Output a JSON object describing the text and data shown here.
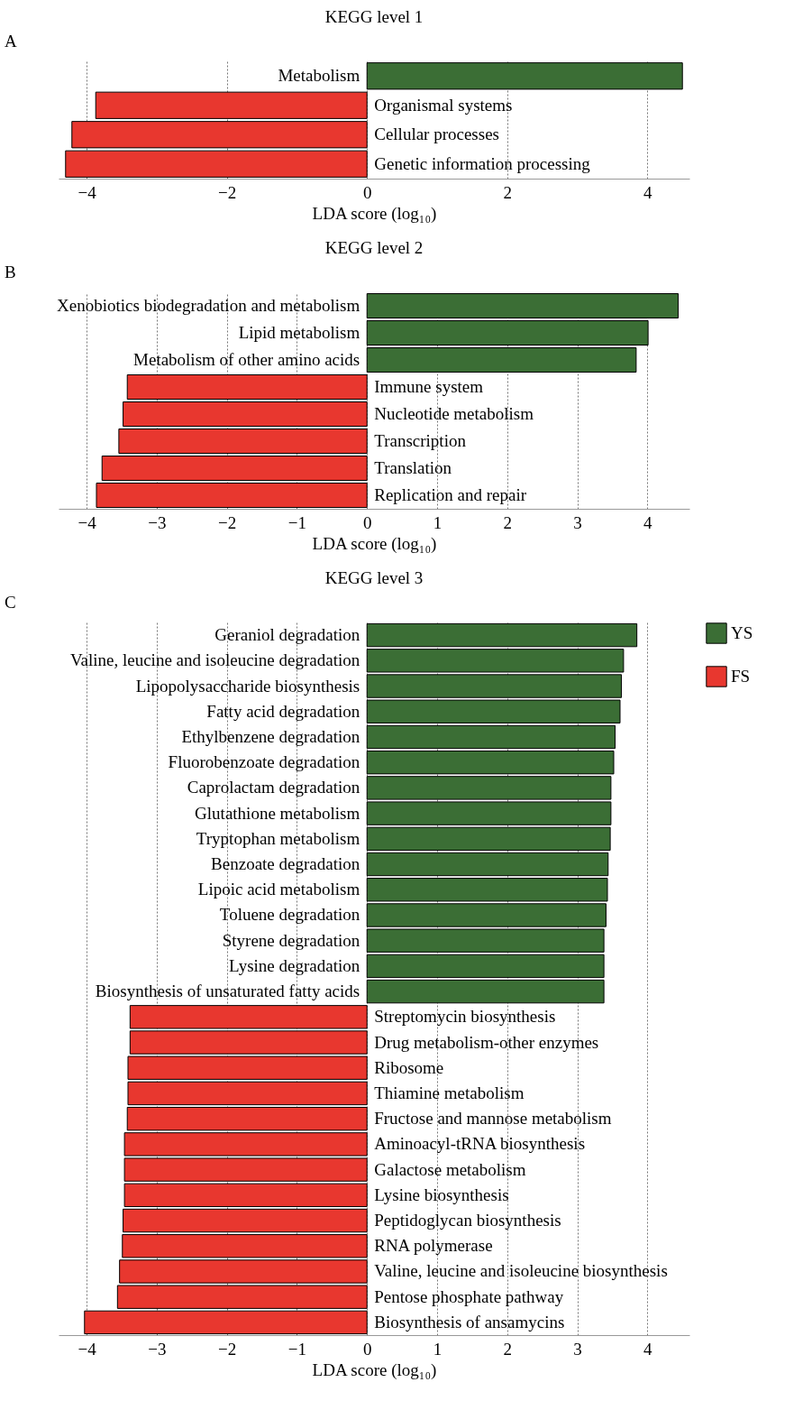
{
  "chart_data": [
    {
      "type": "bar",
      "orientation": "horizontal",
      "title": "KEGG level 1",
      "annotations": [
        "A"
      ],
      "xlabel": "LDA score (log₁₀)",
      "xlim": [
        -4.4,
        4.6
      ],
      "xticks": [
        {
          "value": -4,
          "label": "−4"
        },
        {
          "value": -2,
          "label": "−2"
        },
        {
          "value": 0,
          "label": "0"
        },
        {
          "value": 2,
          "label": "2"
        },
        {
          "value": 4,
          "label": "4"
        }
      ],
      "grid": "x",
      "legend": false,
      "categories": [
        "Metabolism",
        "Organismal systems",
        "Cellular processes",
        "Genetic information processing"
      ],
      "series": [
        {
          "color": "#3b6e35",
          "values": [
            4.5,
            null,
            null,
            null
          ]
        },
        {
          "color": "#e8372f",
          "values": [
            null,
            -3.87,
            -4.21,
            -4.3
          ]
        }
      ]
    },
    {
      "type": "bar",
      "orientation": "horizontal",
      "title": "KEGG level 2",
      "annotations": [
        "B"
      ],
      "xlabel": "LDA score (log₁₀)",
      "xlim": [
        -4.4,
        4.6
      ],
      "xticks": [
        {
          "value": -4,
          "label": "−4"
        },
        {
          "value": -3,
          "label": "−3"
        },
        {
          "value": -2,
          "label": "−2"
        },
        {
          "value": -1,
          "label": "−1"
        },
        {
          "value": 0,
          "label": "0"
        },
        {
          "value": 1,
          "label": "1"
        },
        {
          "value": 2,
          "label": "2"
        },
        {
          "value": 3,
          "label": "3"
        },
        {
          "value": 4,
          "label": "4"
        }
      ],
      "grid": "x",
      "legend": false,
      "categories": [
        "Xenobiotics biodegradation and metabolism",
        "Lipid metabolism",
        "Metabolism of other amino acids",
        "Immune system",
        "Nucleotide metabolism",
        "Transcription",
        "Translation",
        "Replication and repair"
      ],
      "series": [
        {
          "color": "#3b6e35",
          "values": [
            4.44,
            4.01,
            3.84,
            null,
            null,
            null,
            null,
            null
          ]
        },
        {
          "color": "#e8372f",
          "values": [
            null,
            null,
            null,
            -3.42,
            -3.48,
            -3.54,
            -3.78,
            -3.86
          ]
        }
      ]
    },
    {
      "type": "bar",
      "orientation": "horizontal",
      "title": "KEGG level 3",
      "annotations": [
        "C"
      ],
      "xlabel": "LDA score (log₁₀)",
      "xlim": [
        -4.4,
        4.6
      ],
      "xticks": [
        {
          "value": -4,
          "label": "−4"
        },
        {
          "value": -3,
          "label": "−3"
        },
        {
          "value": -2,
          "label": "−2"
        },
        {
          "value": -1,
          "label": "−1"
        },
        {
          "value": 0,
          "label": "0"
        },
        {
          "value": 1,
          "label": "1"
        },
        {
          "value": 2,
          "label": "2"
        },
        {
          "value": 3,
          "label": "3"
        },
        {
          "value": 4,
          "label": "4"
        }
      ],
      "grid": "x",
      "legend": "right",
      "categories": [
        "Geraniol degradation",
        "Valine, leucine and isoleucine degradation",
        "Lipopolysaccharide biosynthesis",
        "Fatty acid degradation",
        "Ethylbenzene degradation",
        "Fluorobenzoate degradation",
        "Caprolactam degradation",
        "Glutathione metabolism",
        "Tryptophan metabolism",
        "Benzoate degradation",
        "Lipoic acid metabolism",
        "Toluene degradation",
        "Styrene degradation",
        "Lysine degradation",
        "Biosynthesis of unsaturated fatty acids",
        "Streptomycin biosynthesis",
        "Drug metabolism-other enzymes",
        "Ribosome",
        "Thiamine metabolism",
        "Fructose and mannose metabolism",
        "Aminoacyl-tRNA biosynthesis",
        "Galactose metabolism",
        "Lysine biosynthesis",
        "Peptidoglycan biosynthesis",
        "RNA polymerase",
        "Valine, leucine and isoleucine biosynthesis",
        "Pentose phosphate pathway",
        "Biosynthesis of ansamycins"
      ],
      "series": [
        {
          "name": "YS",
          "color": "#3b6e35",
          "values": [
            3.85,
            3.66,
            3.63,
            3.61,
            3.54,
            3.52,
            3.48,
            3.48,
            3.47,
            3.44,
            3.43,
            3.41,
            3.38,
            3.38,
            3.38,
            null,
            null,
            null,
            null,
            null,
            null,
            null,
            null,
            null,
            null,
            null,
            null,
            null
          ]
        },
        {
          "name": "FS",
          "color": "#e8372f",
          "values": [
            null,
            null,
            null,
            null,
            null,
            null,
            null,
            null,
            null,
            null,
            null,
            null,
            null,
            null,
            null,
            -3.38,
            -3.38,
            -3.41,
            -3.41,
            -3.42,
            -3.46,
            -3.46,
            -3.46,
            -3.48,
            -3.49,
            -3.53,
            -3.56,
            -4.03
          ]
        }
      ]
    }
  ]
}
